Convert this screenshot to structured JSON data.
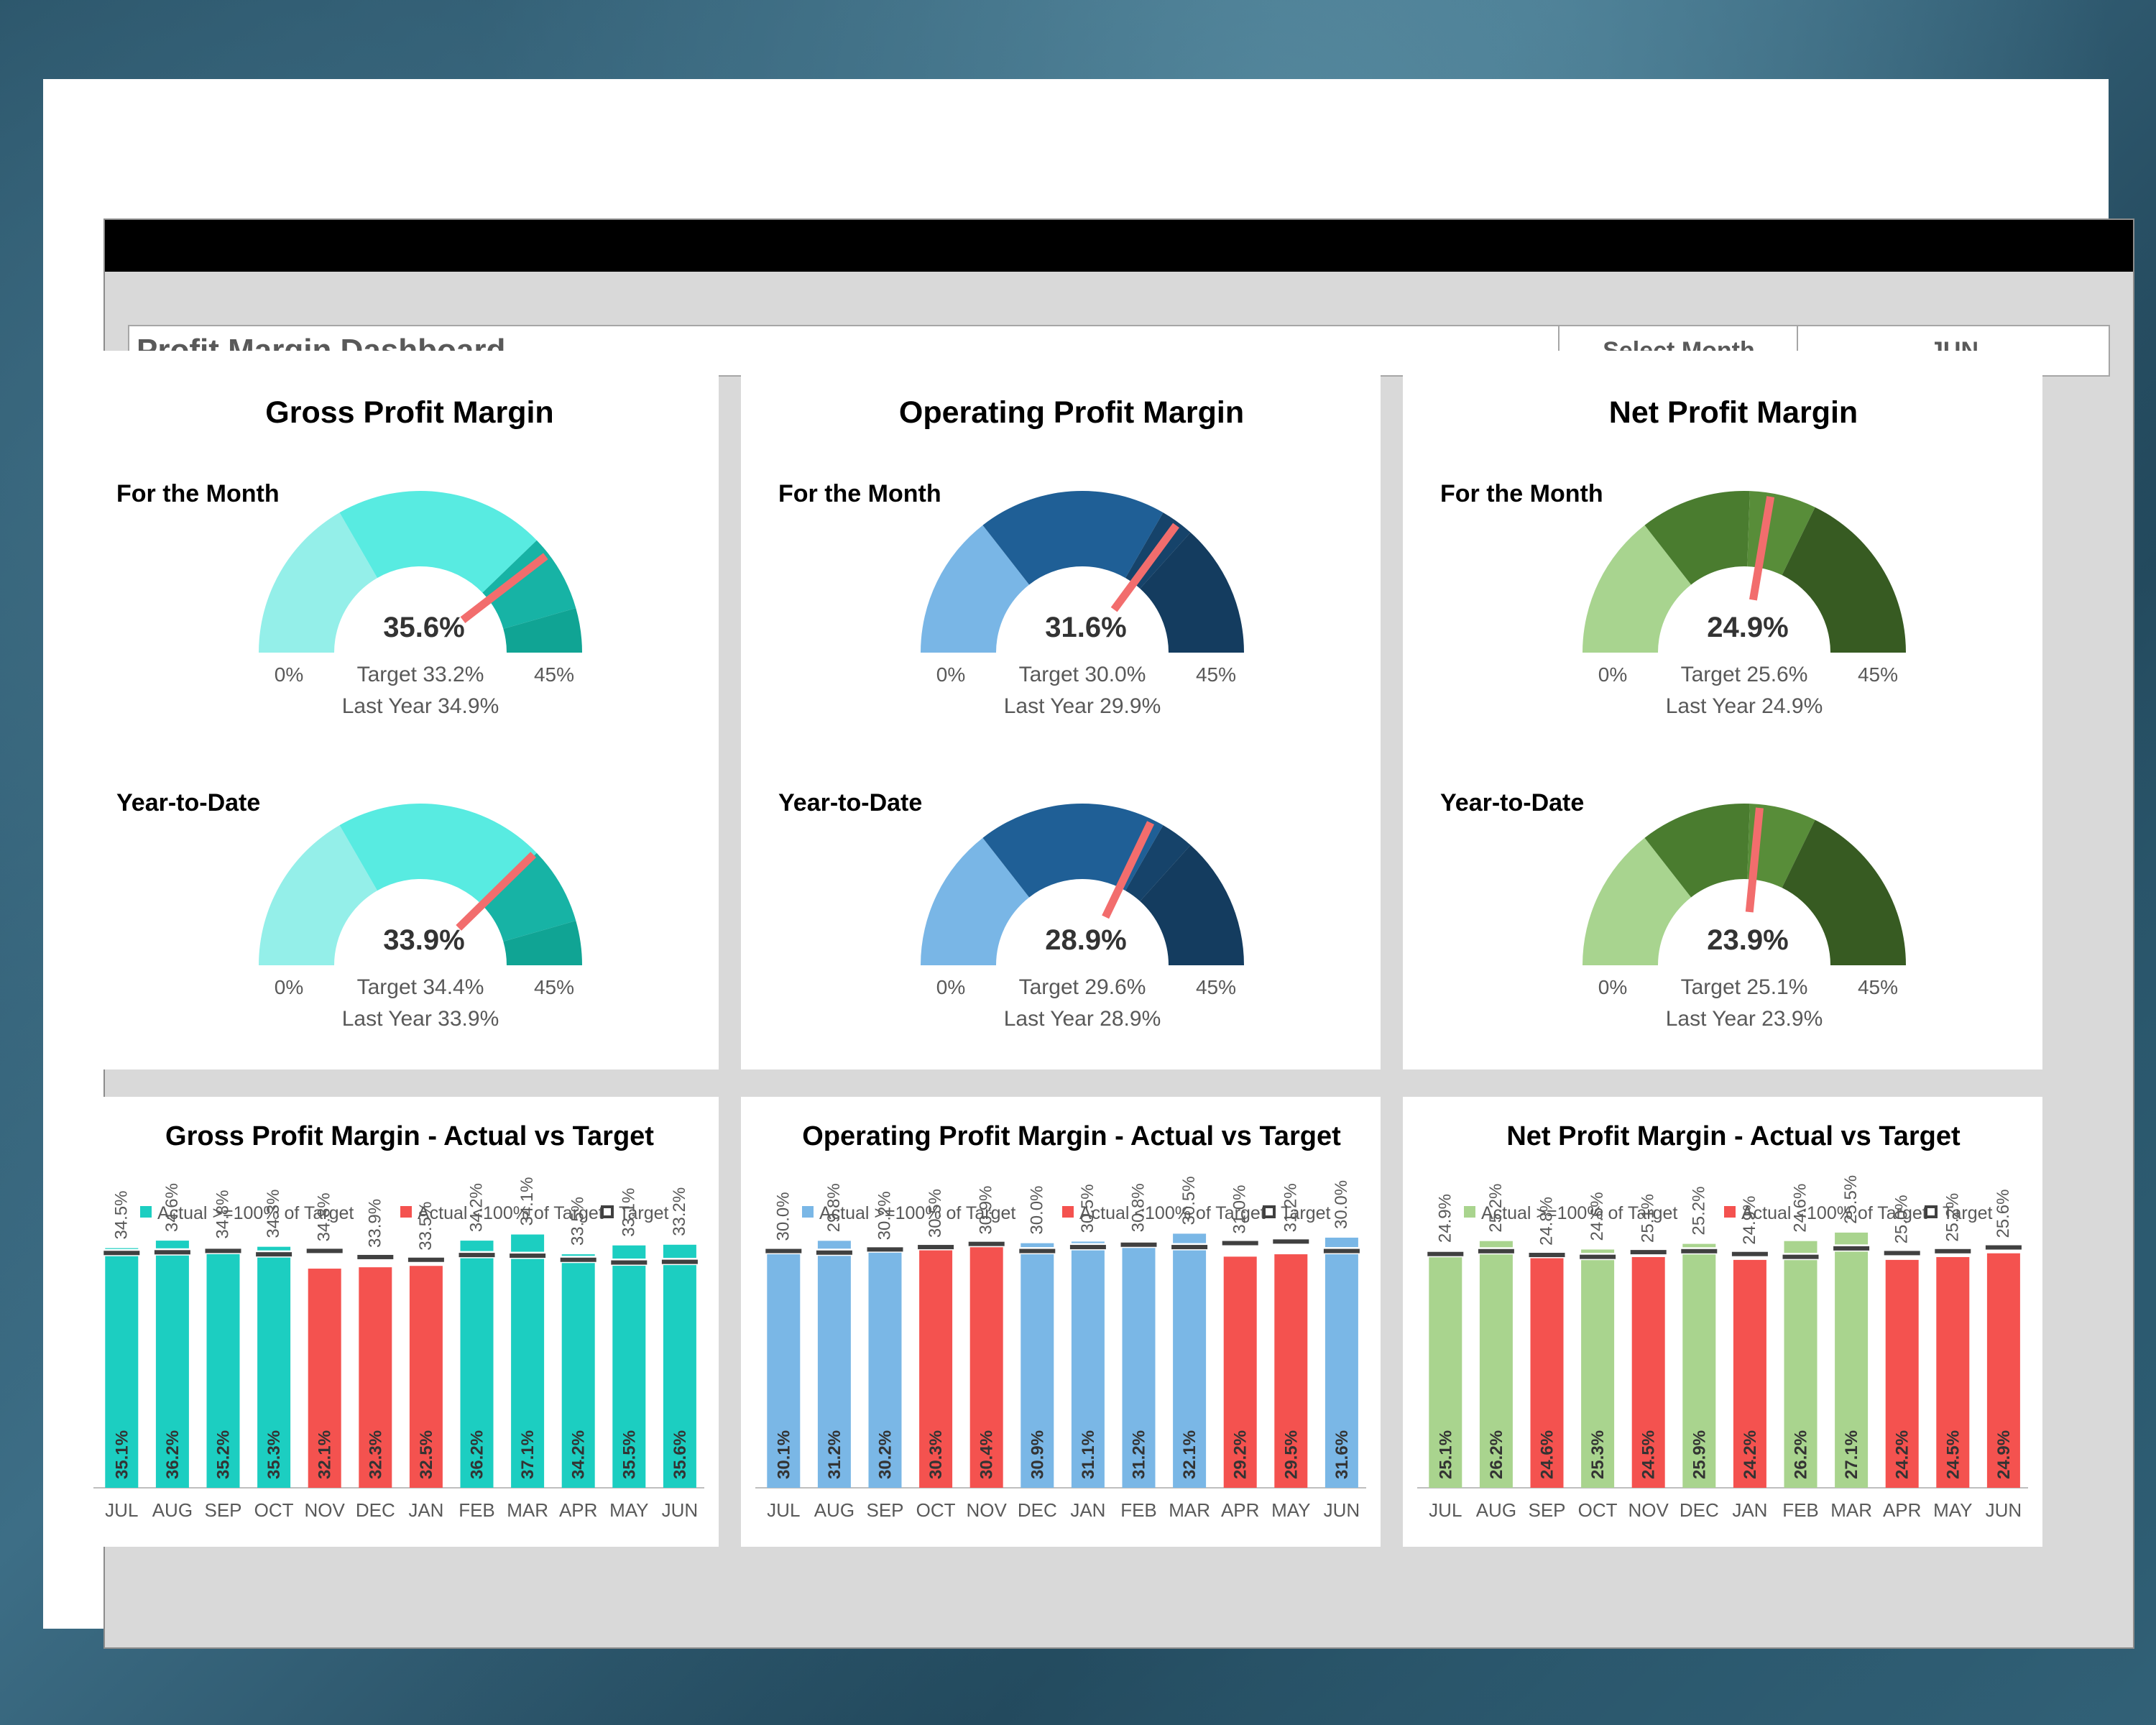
{
  "header": {
    "title": "Profit Margin Dashboard",
    "select_label": "Select Month",
    "select_value": "JUN"
  },
  "colors": {
    "needle": "#f26d6d",
    "below_target": "#f4524f",
    "target_marker": "#404040"
  },
  "gauges": [
    {
      "title": "Gross Profit Margin",
      "colors": [
        "#94efe9",
        "#58ebe1",
        "#17b3a5",
        "#10a494"
      ],
      "bands": [
        0.15,
        0.34,
        0.41,
        0.45
      ],
      "month": {
        "label": "For the Month",
        "value": "35.6%",
        "v": 35.6,
        "min": "0%",
        "max": "45%",
        "target": "Target 33.2%",
        "last_year": "Last Year 34.9%"
      },
      "ytd": {
        "label": "Year-to-Date",
        "value": "33.9%",
        "v": 33.9,
        "min": "0%",
        "max": "45%",
        "target": "Target 34.4%",
        "last_year": "Last Year 33.9%"
      }
    },
    {
      "title": "Operating Profit Margin",
      "colors": [
        "#79b6e6",
        "#1f5f96",
        "#16436a",
        "#143c5f"
      ],
      "bands": [
        0.13,
        0.3,
        0.33,
        0.45
      ],
      "month": {
        "label": "For the Month",
        "value": "31.6%",
        "v": 31.6,
        "min": "0%",
        "max": "45%",
        "target": "Target 30.0%",
        "last_year": "Last Year 29.9%"
      },
      "ytd": {
        "label": "Year-to-Date",
        "value": "28.9%",
        "v": 28.9,
        "min": "0%",
        "max": "45%",
        "target": "Target 29.6%",
        "last_year": "Last Year 28.9%"
      }
    },
    {
      "title": "Net Profit Margin",
      "colors": [
        "#a8d48f",
        "#4a7c2f",
        "#588d39",
        "#375b22"
      ],
      "bands": [
        0.13,
        0.23,
        0.29,
        0.45
      ],
      "month": {
        "label": "For the Month",
        "value": "24.9%",
        "v": 24.9,
        "min": "0%",
        "max": "45%",
        "target": "Target 25.6%",
        "last_year": "Last Year 24.9%"
      },
      "ytd": {
        "label": "Year-to-Date",
        "value": "23.9%",
        "v": 23.9,
        "min": "0%",
        "max": "45%",
        "target": "Target 25.1%",
        "last_year": "Last Year 23.9%"
      }
    }
  ],
  "chart_data": [
    {
      "type": "bar",
      "title": "Gross Profit Margin - Actual vs Target",
      "legend": [
        "Actual >=100% of Target",
        "Actual <100% of Target",
        "Target"
      ],
      "legend_placement": "top",
      "color_ok": "#1ccec1",
      "categories": [
        "JUL",
        "AUG",
        "SEP",
        "OCT",
        "NOV",
        "DEC",
        "JAN",
        "FEB",
        "MAR",
        "APR",
        "MAY",
        "JUN"
      ],
      "actual": [
        35.1,
        36.2,
        35.2,
        35.3,
        32.1,
        32.3,
        32.5,
        36.2,
        37.1,
        34.2,
        35.5,
        35.6
      ],
      "target": [
        34.5,
        34.6,
        34.8,
        34.3,
        34.8,
        33.9,
        33.5,
        34.2,
        34.1,
        33.5,
        33.1,
        33.2
      ],
      "actual_labels": [
        "35.1%",
        "36.2%",
        "35.2%",
        "35.3%",
        "32.1%",
        "32.3%",
        "32.5%",
        "36.2%",
        "37.1%",
        "34.2%",
        "35.5%",
        "35.6%"
      ],
      "target_labels": [
        "34.5%",
        "34.6%",
        "34.8%",
        "34.3%",
        "34.8%",
        "33.9%",
        "33.5%",
        "34.2%",
        "34.1%",
        "33.5%",
        "33.1%",
        "33.2%"
      ],
      "ylim": [
        0,
        40
      ]
    },
    {
      "type": "bar",
      "title": "Operating Profit Margin - Actual vs Target",
      "legend": [
        "Actual >=100% of Target",
        "Actual <100% of Target",
        "Target"
      ],
      "legend_placement": "top",
      "color_ok": "#7ab7e6",
      "categories": [
        "JUL",
        "AUG",
        "SEP",
        "OCT",
        "NOV",
        "DEC",
        "JAN",
        "FEB",
        "MAR",
        "APR",
        "MAY",
        "JUN"
      ],
      "actual": [
        30.1,
        31.2,
        30.2,
        30.3,
        30.4,
        30.9,
        31.1,
        31.2,
        32.1,
        29.2,
        29.5,
        31.6
      ],
      "target": [
        30.0,
        29.8,
        30.2,
        30.5,
        30.9,
        30.0,
        30.5,
        30.8,
        30.5,
        31.0,
        31.2,
        30.0
      ],
      "actual_labels": [
        "30.1%",
        "31.2%",
        "30.2%",
        "30.3%",
        "30.4%",
        "30.9%",
        "31.1%",
        "31.2%",
        "32.1%",
        "29.2%",
        "29.5%",
        "31.6%"
      ],
      "target_labels": [
        "30.0%",
        "29.8%",
        "30.2%",
        "30.5%",
        "30.9%",
        "30.0%",
        "30.5%",
        "30.8%",
        "30.5%",
        "31.0%",
        "31.2%",
        "30.0%"
      ],
      "ylim": [
        0,
        34.5
      ]
    },
    {
      "type": "bar",
      "title": "Net Profit Margin - Actual vs Target",
      "legend": [
        "Actual >=100% of Target",
        "Actual <100% of Target",
        "Target"
      ],
      "legend_placement": "top",
      "color_ok": "#a9d48e",
      "categories": [
        "JUL",
        "AUG",
        "SEP",
        "OCT",
        "NOV",
        "DEC",
        "JAN",
        "FEB",
        "MAR",
        "APR",
        "MAY",
        "JUN"
      ],
      "actual": [
        25.1,
        26.2,
        24.6,
        25.3,
        24.5,
        25.9,
        24.2,
        26.2,
        27.1,
        24.2,
        24.5,
        24.9
      ],
      "target": [
        24.9,
        25.2,
        24.8,
        24.6,
        25.1,
        25.2,
        24.9,
        24.6,
        25.5,
        25.0,
        25.2,
        25.6
      ],
      "actual_labels": [
        "25.1%",
        "26.2%",
        "24.6%",
        "25.3%",
        "24.5%",
        "25.9%",
        "24.2%",
        "26.2%",
        "27.1%",
        "24.2%",
        "24.5%",
        "24.9%"
      ],
      "target_labels": [
        "24.9%",
        "25.2%",
        "24.8%",
        "24.6%",
        "25.1%",
        "25.2%",
        "24.9%",
        "24.6%",
        "25.5%",
        "25.0%",
        "25.2%",
        "25.6%"
      ],
      "ylim": [
        0,
        29
      ]
    }
  ]
}
